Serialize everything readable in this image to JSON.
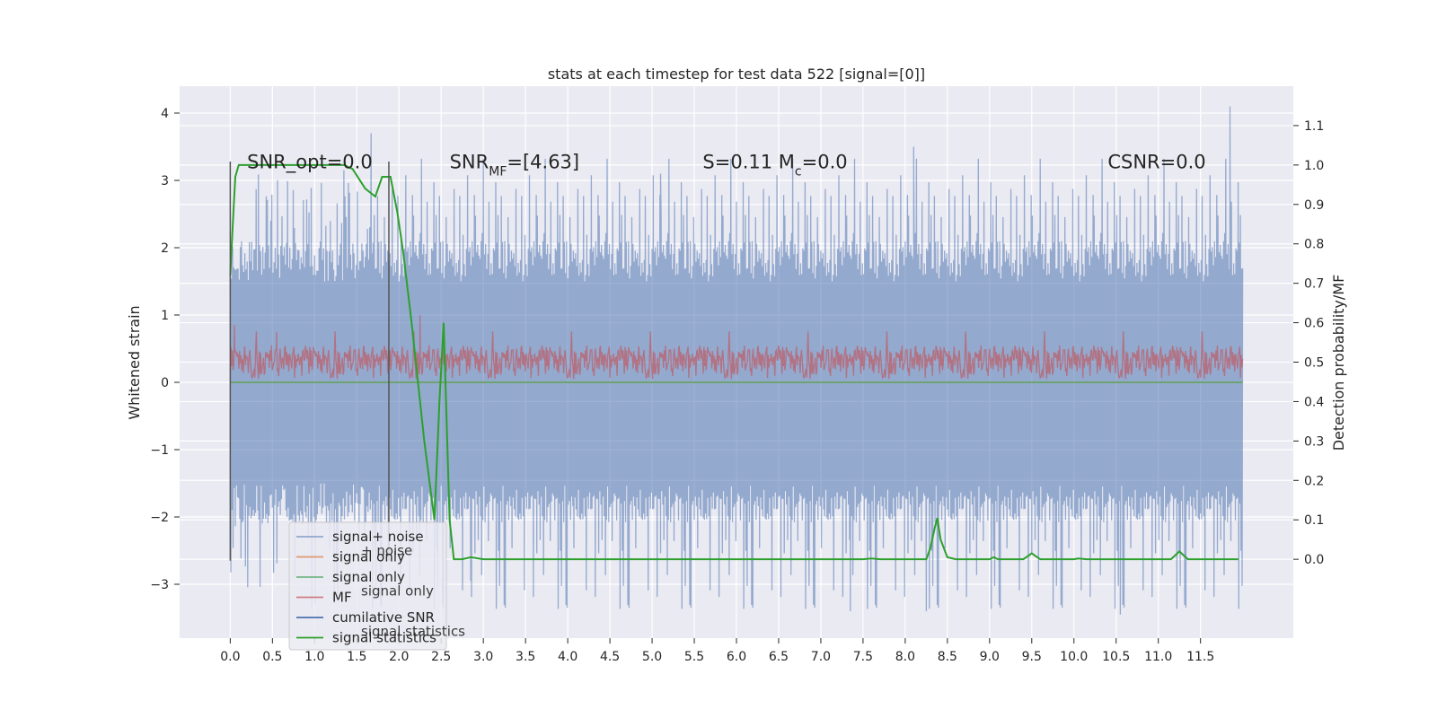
{
  "chart_data": {
    "type": "line",
    "title": "stats at each timestep for test data 522 [signal=[0]]",
    "xlabel": "",
    "ylabel": "Whitened strain",
    "ylabel_right": "Detection probability/MF",
    "xlim": [
      -0.6,
      12.6
    ],
    "ylim": [
      -3.8,
      4.4
    ],
    "ylim_right": [
      -0.2,
      1.2
    ],
    "xticks": [
      0.0,
      0.5,
      1.0,
      1.5,
      2.0,
      2.5,
      3.0,
      3.5,
      4.0,
      4.5,
      5.0,
      5.5,
      6.0,
      6.5,
      7.0,
      7.5,
      8.0,
      8.5,
      9.0,
      9.5,
      10.0,
      10.5,
      11.0,
      11.5
    ],
    "xtick_labels": [
      "0.0",
      "0.5",
      "1.0",
      "1.5",
      "2.0",
      "2.5",
      "3.0",
      "3.5",
      "4.0",
      "4.5",
      "5.0",
      "5.5",
      "6.0",
      "6.5",
      "7.0",
      "7.5",
      "8.0",
      "8.5",
      "9.0",
      "9.5",
      "10.0",
      "10.5",
      "11.0",
      "11.5"
    ],
    "yticks": [
      -3,
      -2,
      -1,
      0,
      1,
      2,
      3,
      4
    ],
    "ytick_labels": [
      "−3",
      "−2",
      "−1",
      "0",
      "1",
      "2",
      "3",
      "4"
    ],
    "yticks_right": [
      0.0,
      0.1,
      0.2,
      0.3,
      0.4,
      0.5,
      0.6,
      0.7,
      0.8,
      0.9,
      1.0,
      1.1
    ],
    "ytick_labels_right": [
      "0.0",
      "0.1",
      "0.2",
      "0.3",
      "0.4",
      "0.5",
      "0.6",
      "0.7",
      "0.8",
      "0.9",
      "1.0",
      "1.1"
    ],
    "grid": true,
    "legend_position": "lower-left",
    "annotations": [
      {
        "text": "SNR_opt=0.0",
        "x": 0.2,
        "y": 3.3
      },
      {
        "text": "SNR_MF=[4.63]",
        "x": 2.6,
        "y": 3.3
      },
      {
        "text": "S=0.11   M_c=0.0",
        "x": 5.6,
        "y": 3.3
      },
      {
        "text": "CSNR=0.0",
        "x": 10.4,
        "y": 3.3
      }
    ],
    "vertical_markers": [
      {
        "x": 0.0,
        "y_range": [
          -2.65,
          3.28
        ]
      },
      {
        "x": 1.88,
        "y_range": [
          -2.65,
          3.28
        ]
      }
    ],
    "series": [
      {
        "name": "signal+ noise",
        "axis": "left",
        "color": "#4c72b0",
        "opacity": 0.55,
        "summary": {
          "x_range": [
            0.0,
            12.0
          ],
          "envelope_upper": 1.5,
          "envelope_lower": -1.5,
          "peaks": [
            [
              1.67,
              3.7
            ],
            [
              11.85,
              4.1
            ],
            [
              8.1,
              3.5
            ],
            [
              5.1,
              3.1
            ]
          ],
          "troughs": [
            [
              10.55,
              -3.45
            ],
            [
              7.35,
              -3.4
            ],
            [
              2.85,
              -2.95
            ],
            [
              8.25,
              -3.4
            ]
          ]
        }
      },
      {
        "name": "signal only",
        "axis": "left",
        "color": "#dd8452",
        "values_x": [
          0.0,
          12.0
        ],
        "values_y": [
          0.0,
          0.0
        ]
      },
      {
        "name": "signal only",
        "axis": "left",
        "color": "#55a868",
        "values_x": [
          0.0,
          12.0
        ],
        "values_y": [
          0.0,
          0.0
        ]
      },
      {
        "name": "MF",
        "axis": "left",
        "color": "#c44e52",
        "opacity": 0.6,
        "summary": {
          "x_range": [
            0.0,
            12.0
          ],
          "envelope_upper": 0.55,
          "envelope_lower": 0.05,
          "peaks": [
            [
              2.25,
              1.0
            ],
            [
              0.05,
              0.85
            ],
            [
              0.55,
              0.75
            ]
          ]
        }
      },
      {
        "name": "cumilative SNR",
        "axis": "left",
        "color": "#4c72b0",
        "values_x": [],
        "values_y": []
      },
      {
        "name": "signal statistics",
        "axis": "right",
        "color": "#2ca02c",
        "values_x": [
          0.0,
          0.03,
          0.06,
          0.1,
          0.2,
          0.5,
          1.0,
          1.35,
          1.45,
          1.6,
          1.72,
          1.8,
          1.9,
          1.98,
          2.05,
          2.15,
          2.3,
          2.42,
          2.48,
          2.53,
          2.6,
          2.65,
          2.75,
          2.85,
          3.0,
          4.0,
          5.0,
          6.0,
          7.0,
          7.5,
          7.6,
          7.7,
          8.0,
          8.25,
          8.3,
          8.35,
          8.38,
          8.42,
          8.5,
          8.6,
          9.0,
          9.05,
          9.1,
          9.4,
          9.5,
          9.6,
          10.0,
          10.05,
          10.15,
          11.0,
          11.15,
          11.25,
          11.35,
          11.5,
          11.95
        ],
        "values_y": [
          0.72,
          0.85,
          0.97,
          1.0,
          1.0,
          1.0,
          1.0,
          1.0,
          0.99,
          0.94,
          0.92,
          0.97,
          0.97,
          0.88,
          0.78,
          0.6,
          0.3,
          0.1,
          0.4,
          0.6,
          0.1,
          0.0,
          0.0,
          0.005,
          0.0,
          0.0,
          0.0,
          0.0,
          0.0,
          0.0,
          0.002,
          0.0,
          0.0,
          0.0,
          0.03,
          0.08,
          0.105,
          0.05,
          0.005,
          0.0,
          0.0,
          0.005,
          0.0,
          0.0,
          0.015,
          0.0,
          0.0,
          0.002,
          0.0,
          0.0,
          0.0,
          0.02,
          0.0,
          0.0,
          0.0
        ]
      }
    ]
  },
  "legend": {
    "items": [
      {
        "label": "signal+ noise",
        "color": "#4c72b0",
        "alpha": 0.55
      },
      {
        "label": "signal only",
        "color": "#dd8452",
        "alpha": 0.8
      },
      {
        "label": "signal only",
        "color": "#55a868",
        "alpha": 0.8
      },
      {
        "label": "MF",
        "color": "#c44e52",
        "alpha": 0.7
      },
      {
        "label": "cumilative SNR",
        "color": "#4c72b0",
        "alpha": 1.0
      },
      {
        "label": "signal statistics",
        "color": "#2ca02c",
        "alpha": 1.0
      }
    ],
    "ghost_labels": [
      "+ noise",
      "signal only",
      "signal statistics"
    ]
  },
  "colors": {
    "axes_bg": "#eaeaf2",
    "grid": "#ffffff",
    "marker_line": "#555555",
    "legend_bg": "#eaeaf2",
    "legend_border": "#cccccc"
  }
}
